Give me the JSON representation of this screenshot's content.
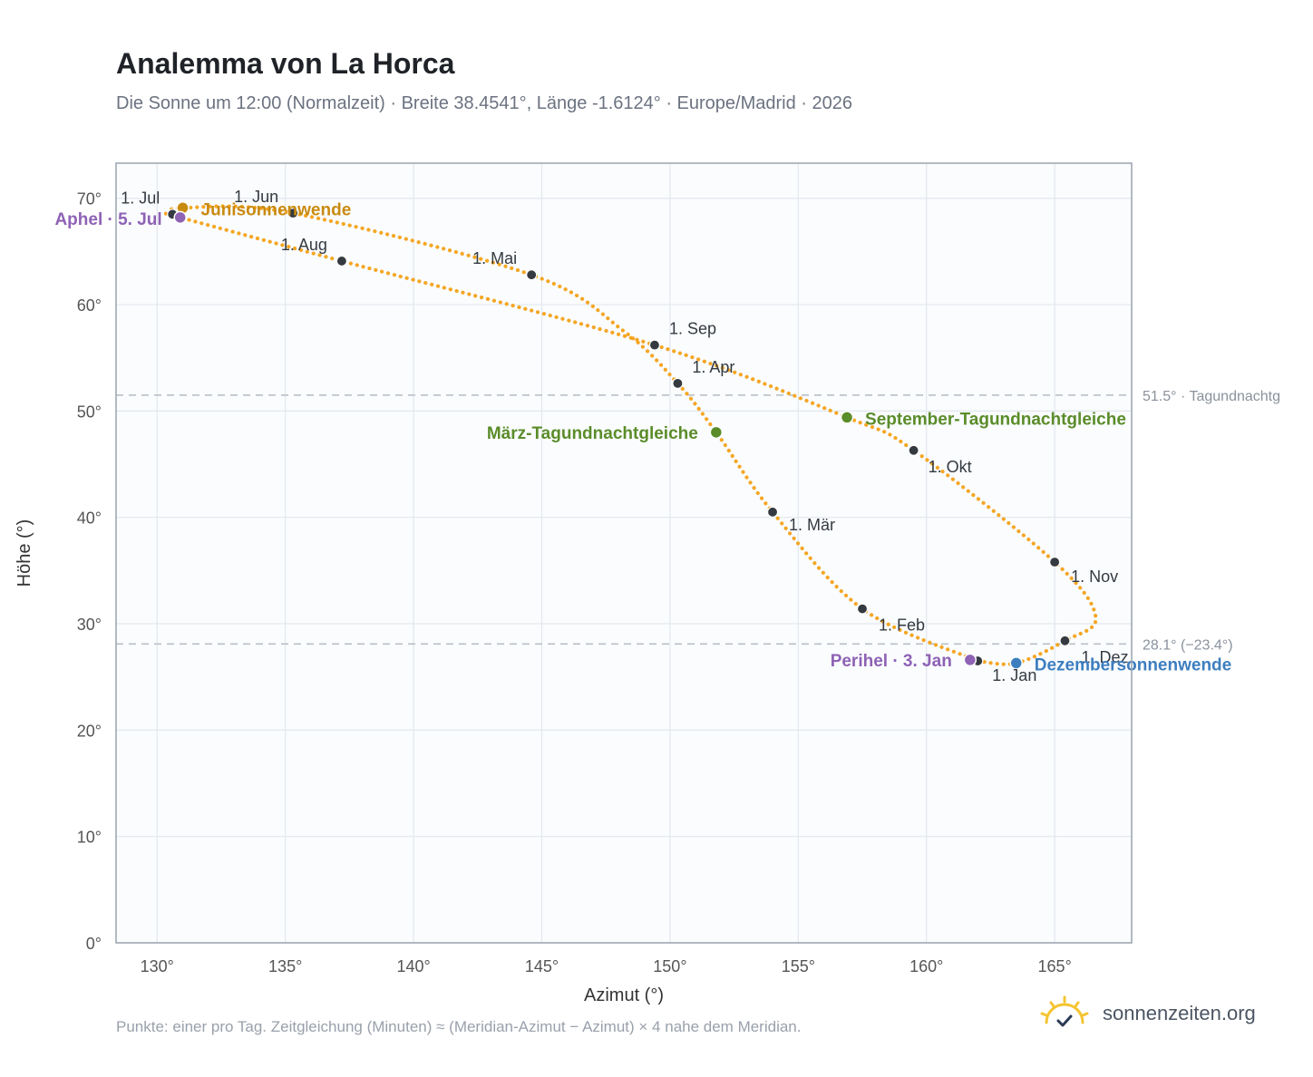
{
  "page": {
    "title": "Analemma von La Horca",
    "subtitle": "Die Sonne um 12:00 (Normalzeit) · Breite 38.4541°, Länge -1.6124° · Europe/Madrid · 2026",
    "footnote": "Punkte: einer pro Tag. Zeitgleichung (Minuten) ≈ (Meridian-Azimut − Azimut) × 4 nahe dem Meridian.",
    "brand": "sonnenzeiten.org",
    "brand_icon": "sun-check-icon"
  },
  "chart_data": {
    "type": "scatter",
    "xlabel": "Azimut (°)",
    "ylabel": "Höhe (°)",
    "xlim": [
      128.4,
      168
    ],
    "ylim": [
      0,
      73.3
    ],
    "x_ticks": [
      130,
      135,
      140,
      145,
      150,
      155,
      160,
      165
    ],
    "x_tick_labels": [
      "130°",
      "135°",
      "140°",
      "145°",
      "150°",
      "155°",
      "160°",
      "165°"
    ],
    "y_ticks": [
      0,
      10,
      20,
      30,
      40,
      50,
      60,
      70
    ],
    "y_tick_labels": [
      "0°",
      "10°",
      "20°",
      "30°",
      "40°",
      "50°",
      "60°",
      "70°"
    ],
    "grid": true,
    "colors": {
      "path": "#f5a623",
      "month_point": "#343a40",
      "equinox": "#5b8c2a",
      "june_solstice": "#c98a10",
      "december_solstice": "#3d7ebf",
      "apsis": "#8e62b5",
      "reference_line": "#b9c0c8",
      "plot_bg": "#fafcfe",
      "grid": "#e3e8ee"
    },
    "reference_lines": [
      {
        "y": 51.5,
        "label": "51.5° · Tagundnachtg"
      },
      {
        "y": 28.1,
        "label": "28.1° (−23.4°)"
      }
    ],
    "path_points": [
      {
        "x": 162.0,
        "y": 26.5
      },
      {
        "x": 157.5,
        "y": 31.4
      },
      {
        "x": 154.0,
        "y": 40.5
      },
      {
        "x": 151.8,
        "y": 48.0
      },
      {
        "x": 150.3,
        "y": 52.6
      },
      {
        "x": 148.2,
        "y": 57.5
      },
      {
        "x": 144.6,
        "y": 62.8
      },
      {
        "x": 135.3,
        "y": 68.6
      },
      {
        "x": 131.0,
        "y": 69.1
      },
      {
        "x": 130.6,
        "y": 68.5
      },
      {
        "x": 130.9,
        "y": 68.2
      },
      {
        "x": 137.2,
        "y": 64.1
      },
      {
        "x": 149.4,
        "y": 56.2
      },
      {
        "x": 156.9,
        "y": 49.4
      },
      {
        "x": 159.5,
        "y": 46.3
      },
      {
        "x": 165.0,
        "y": 35.8
      },
      {
        "x": 166.6,
        "y": 30.6
      },
      {
        "x": 165.4,
        "y": 28.4
      },
      {
        "x": 163.5,
        "y": 26.3
      },
      {
        "x": 162.0,
        "y": 26.5
      }
    ],
    "month_points": [
      {
        "label": "1. Jan",
        "x": 162.0,
        "y": 26.5
      },
      {
        "label": "1. Feb",
        "x": 157.5,
        "y": 31.4
      },
      {
        "label": "1. Mär",
        "x": 154.0,
        "y": 40.5
      },
      {
        "label": "1. Apr",
        "x": 150.3,
        "y": 52.6
      },
      {
        "label": "1. Mai",
        "x": 144.6,
        "y": 62.8
      },
      {
        "label": "1. Jun",
        "x": 135.3,
        "y": 68.6
      },
      {
        "label": "1. Jul",
        "x": 130.6,
        "y": 68.5
      },
      {
        "label": "1. Aug",
        "x": 137.2,
        "y": 64.1
      },
      {
        "label": "1. Sep",
        "x": 149.4,
        "y": 56.2
      },
      {
        "label": "1. Okt",
        "x": 159.5,
        "y": 46.3
      },
      {
        "label": "1. Nov",
        "x": 165.0,
        "y": 35.8
      },
      {
        "label": "1. Dez",
        "x": 165.4,
        "y": 28.4
      }
    ],
    "special_points": [
      {
        "label": "März-Tagundnachtgleiche",
        "x": 151.8,
        "y": 48.0,
        "kind": "equinox"
      },
      {
        "label": "September-Tagundnachtgleiche",
        "x": 156.9,
        "y": 49.4,
        "kind": "equinox"
      },
      {
        "label": "Junisonnenwende",
        "x": 131.0,
        "y": 69.1,
        "kind": "june_solstice"
      },
      {
        "label": "Dezembersonnenwende",
        "x": 163.5,
        "y": 26.3,
        "kind": "december_solstice"
      },
      {
        "label": "Aphel · 5. Jul",
        "x": 130.9,
        "y": 68.2,
        "kind": "apsis"
      },
      {
        "label": "Perihel · 3. Jan",
        "x": 161.7,
        "y": 26.6,
        "kind": "apsis"
      }
    ]
  }
}
